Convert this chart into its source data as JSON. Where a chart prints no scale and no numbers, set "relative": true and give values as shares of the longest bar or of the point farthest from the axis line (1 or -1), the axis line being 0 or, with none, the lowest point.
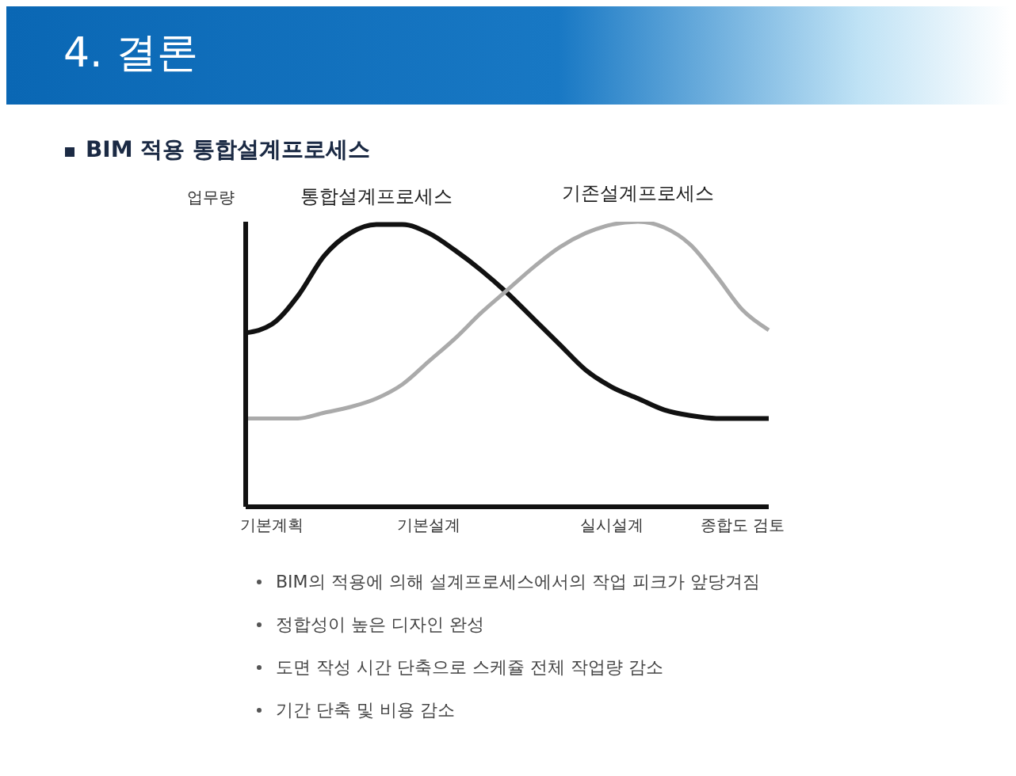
{
  "chart_data": {
    "type": "line",
    "title": "4. 결론",
    "subtitle": "BIM 적용 통합설계프로세스",
    "ylabel": "업무량",
    "relative": true,
    "grid": false,
    "legend": false,
    "marker": "none",
    "line_style": "solid",
    "categories": [
      null,
      "기본계획",
      null,
      null,
      null,
      null,
      null,
      "기본설계",
      null,
      null,
      null,
      null,
      null,
      null,
      "실시설계",
      null,
      null,
      null,
      null,
      "종합도 검토",
      null
    ],
    "series": [
      {
        "name": "통합설계프로세스",
        "color": "#111111",
        "values": [
          0.61,
          0.64,
          0.74,
          0.88,
          0.96,
          0.99,
          0.99,
          0.96,
          0.9,
          0.83,
          0.75,
          0.66,
          0.57,
          0.48,
          0.42,
          0.38,
          0.34,
          0.32,
          0.31,
          0.31,
          0.31
        ]
      },
      {
        "name": "기존설계프로세스",
        "color": "#aaaaaa",
        "values": [
          0.31,
          0.31,
          0.31,
          0.33,
          0.35,
          0.38,
          0.43,
          0.51,
          0.59,
          0.68,
          0.76,
          0.84,
          0.91,
          0.96,
          0.99,
          1.0,
          0.98,
          0.92,
          0.81,
          0.69,
          0.62
        ]
      }
    ],
    "annotations": [
      "BIM의 적용에 의해 설계프로세스에서의 작업 피크가 앞당겨짐",
      "정합성이 높은 디자인 완성",
      "도면 작성 시간 단축으로 스케쥴 전체 작업량 감소",
      "기간 단축 및 비용 감소"
    ]
  }
}
